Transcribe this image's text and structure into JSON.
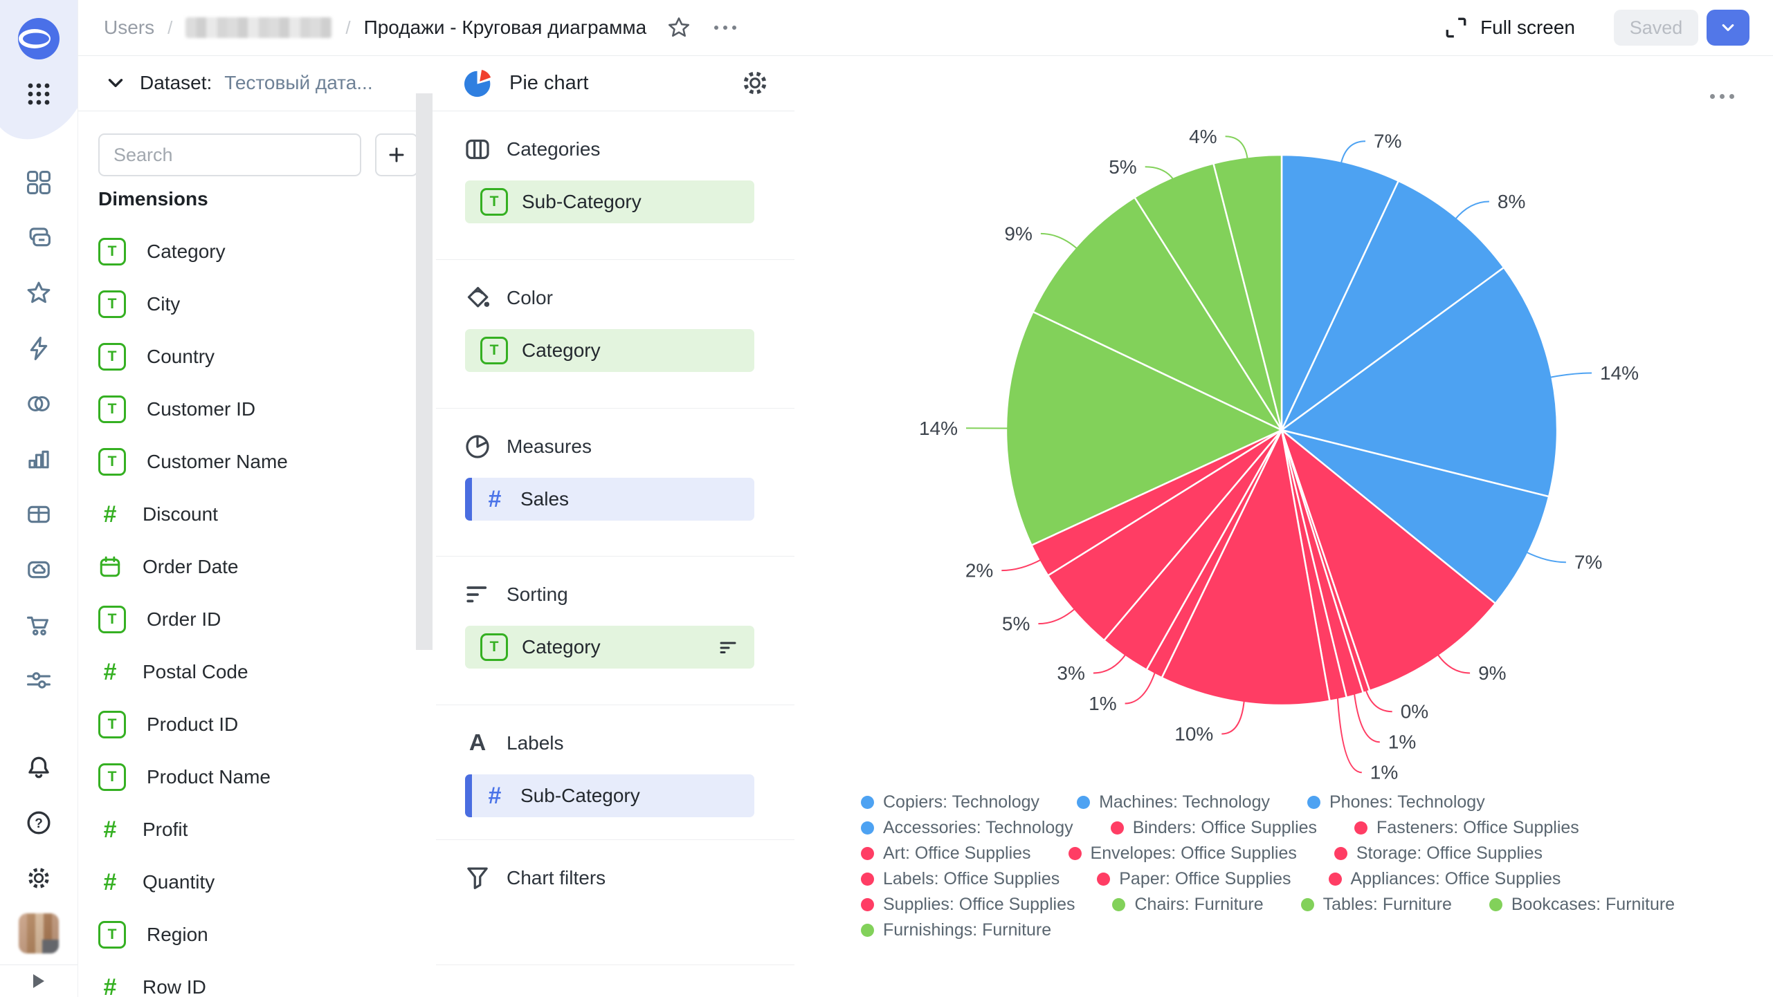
{
  "topbar": {
    "breadcrumb": {
      "root": "Users",
      "separator": "/",
      "current": "Продажи - Круговая диаграмма"
    },
    "full_screen_label": "Full screen",
    "saved_label": "Saved"
  },
  "dataset_panel": {
    "header_label": "Dataset:",
    "dataset_name": "Тестовый дата...",
    "search_placeholder": "Search",
    "dimensions_title": "Dimensions",
    "fields": [
      {
        "label": "Category",
        "type": "text"
      },
      {
        "label": "City",
        "type": "text"
      },
      {
        "label": "Country",
        "type": "text"
      },
      {
        "label": "Customer ID",
        "type": "text"
      },
      {
        "label": "Customer Name",
        "type": "text"
      },
      {
        "label": "Discount",
        "type": "number"
      },
      {
        "label": "Order Date",
        "type": "date"
      },
      {
        "label": "Order ID",
        "type": "text"
      },
      {
        "label": "Postal Code",
        "type": "number"
      },
      {
        "label": "Product ID",
        "type": "text"
      },
      {
        "label": "Product Name",
        "type": "text"
      },
      {
        "label": "Profit",
        "type": "number"
      },
      {
        "label": "Quantity",
        "type": "number"
      },
      {
        "label": "Region",
        "type": "text"
      },
      {
        "label": "Row ID",
        "type": "number"
      }
    ]
  },
  "config_panel": {
    "chart_type_label": "Pie chart",
    "sections": {
      "categories": {
        "title": "Categories",
        "chip": {
          "label": "Sub-Category",
          "type": "text",
          "variant": "green"
        }
      },
      "color": {
        "title": "Color",
        "chip": {
          "label": "Category",
          "type": "text",
          "variant": "green"
        }
      },
      "measures": {
        "title": "Measures",
        "chip": {
          "label": "Sales",
          "type": "number",
          "variant": "blue"
        }
      },
      "sorting": {
        "title": "Sorting",
        "chip": {
          "label": "Category",
          "type": "text",
          "variant": "green",
          "trailing": "sort-icon"
        }
      },
      "labels": {
        "title": "Labels",
        "chip": {
          "label": "Sub-Category",
          "type": "number",
          "variant": "blue"
        }
      },
      "chart_filters": {
        "title": "Chart filters"
      }
    }
  },
  "chart_data": {
    "type": "pie",
    "title": "",
    "series_name": "Sales",
    "legend_position": "bottom",
    "palette": {
      "technology": "#4da2f2",
      "office_supplies": "#ff3d64",
      "furniture": "#82d15a"
    },
    "slices": [
      {
        "name": "Copiers: Technology",
        "value": 7,
        "percent_label": "7%",
        "color": "#4da2f2"
      },
      {
        "name": "Machines: Technology",
        "value": 8,
        "percent_label": "8%",
        "color": "#4da2f2"
      },
      {
        "name": "Phones: Technology",
        "value": 14,
        "percent_label": "14%",
        "color": "#4da2f2"
      },
      {
        "name": "Accessories: Technology",
        "value": 7,
        "percent_label": "7%",
        "color": "#4da2f2"
      },
      {
        "name": "Binders: Office Supplies",
        "value": 9,
        "percent_label": "9%",
        "color": "#ff3d64"
      },
      {
        "name": "Fasteners: Office Supplies",
        "value": 0,
        "percent_label": "0%",
        "color": "#ff3d64"
      },
      {
        "name": "Art: Office Supplies",
        "value": 1,
        "percent_label": "1%",
        "color": "#ff3d64"
      },
      {
        "name": "Envelopes: Office Supplies",
        "value": 1,
        "percent_label": "1%",
        "color": "#ff3d64"
      },
      {
        "name": "Storage: Office Supplies",
        "value": 10,
        "percent_label": "10%",
        "color": "#ff3d64"
      },
      {
        "name": "Labels: Office Supplies",
        "value": 1,
        "percent_label": "1%",
        "color": "#ff3d64"
      },
      {
        "name": "Paper: Office Supplies",
        "value": 3,
        "percent_label": "3%",
        "color": "#ff3d64"
      },
      {
        "name": "Appliances: Office Supplies",
        "value": 5,
        "percent_label": "5%",
        "color": "#ff3d64"
      },
      {
        "name": "Supplies: Office Supplies",
        "value": 2,
        "percent_label": "2%",
        "color": "#ff3d64"
      },
      {
        "name": "Chairs: Furniture",
        "value": 14,
        "percent_label": "14%",
        "color": "#82d15a"
      },
      {
        "name": "Tables: Furniture",
        "value": 9,
        "percent_label": "9%",
        "color": "#82d15a"
      },
      {
        "name": "Bookcases: Furniture",
        "value": 5,
        "percent_label": "5%",
        "color": "#82d15a"
      },
      {
        "name": "Furnishings: Furniture",
        "value": 4,
        "percent_label": "4%",
        "color": "#82d15a"
      }
    ],
    "legend_rows": [
      [
        0,
        1,
        2
      ],
      [
        3,
        4,
        5
      ],
      [
        6,
        7,
        8
      ],
      [
        9,
        10,
        11
      ],
      [
        12,
        13,
        14,
        15
      ],
      [
        16
      ]
    ]
  },
  "icons": {
    "breadcrumb_menu": "ellipsis",
    "chart_menu": "ellipsis",
    "rail": [
      "datalens-logo",
      "apps-grid",
      "dashboards",
      "collections",
      "favorites",
      "quick",
      "connections",
      "charts",
      "tables",
      "storage",
      "marketplace",
      "services",
      "notifications",
      "help",
      "settings",
      "avatar",
      "collapse"
    ]
  }
}
